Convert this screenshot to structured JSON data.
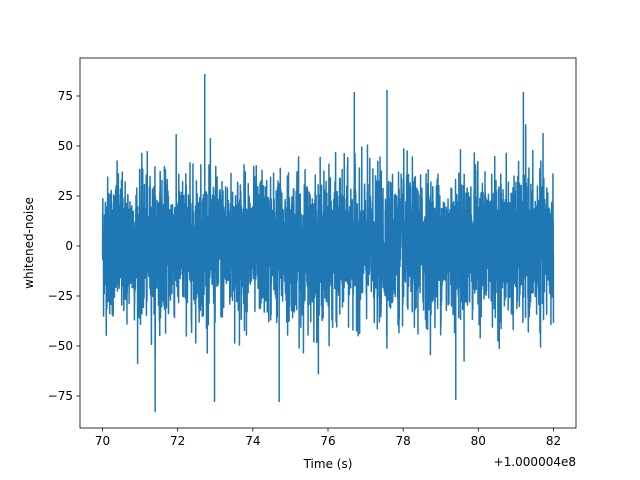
{
  "chart_data": {
    "type": "line",
    "title": "",
    "xlabel": "Time (s)",
    "ylabel": "whitened-noise",
    "x_offset_label": "+1.000004e8",
    "xlim": [
      69.4,
      82.6
    ],
    "ylim": [
      -91,
      94
    ],
    "xticks": [
      70,
      72,
      74,
      76,
      78,
      80,
      82
    ],
    "xtick_labels": [
      "70",
      "72",
      "74",
      "76",
      "78",
      "80",
      "82"
    ],
    "yticks": [
      -75,
      -50,
      -25,
      0,
      25,
      50,
      75
    ],
    "ytick_labels": [
      "−75",
      "−50",
      "−25",
      "0",
      "25",
      "50",
      "75"
    ],
    "grid": false,
    "series": [
      {
        "color": "#1f77b4",
        "x_range": [
          70,
          82
        ],
        "envelope_upper": [
          64,
          58,
          60,
          65,
          63,
          66,
          70,
          60,
          61,
          66,
          58,
          72,
          57,
          52,
          64,
          59,
          63,
          70,
          86,
          58,
          60,
          66,
          62,
          65,
          55,
          60,
          62,
          66,
          68,
          70,
          72,
          62,
          61,
          66,
          70,
          64,
          69,
          69,
          67,
          60,
          62,
          70,
          63,
          68,
          70,
          62,
          66,
          72,
          58,
          64
        ],
        "envelope_lower": [
          -68,
          -52,
          -54,
          -62,
          -58,
          -60,
          -54,
          -50,
          -52,
          -83,
          -55,
          -52,
          -56,
          -62,
          -57,
          -55,
          -60,
          -78,
          -58,
          -60,
          -62,
          -56,
          -65,
          -72,
          -62,
          -70,
          -77,
          -58,
          -60,
          -55,
          -64,
          -56,
          -70,
          -78,
          -60,
          -58,
          -52,
          -66,
          -62,
          -70,
          -60,
          -58,
          -62,
          -64,
          -57,
          -60,
          -65,
          -58,
          -57,
          -54
        ],
        "spikes": [
          {
            "x": 72.72,
            "y": 86
          },
          {
            "x": 71.4,
            "y": -83
          },
          {
            "x": 72.98,
            "y": -78
          },
          {
            "x": 74.7,
            "y": -78
          },
          {
            "x": 77.57,
            "y": 78
          },
          {
            "x": 79.4,
            "y": -77
          },
          {
            "x": 76.7,
            "y": 77
          },
          {
            "x": 81.2,
            "y": 77
          }
        ]
      }
    ]
  }
}
